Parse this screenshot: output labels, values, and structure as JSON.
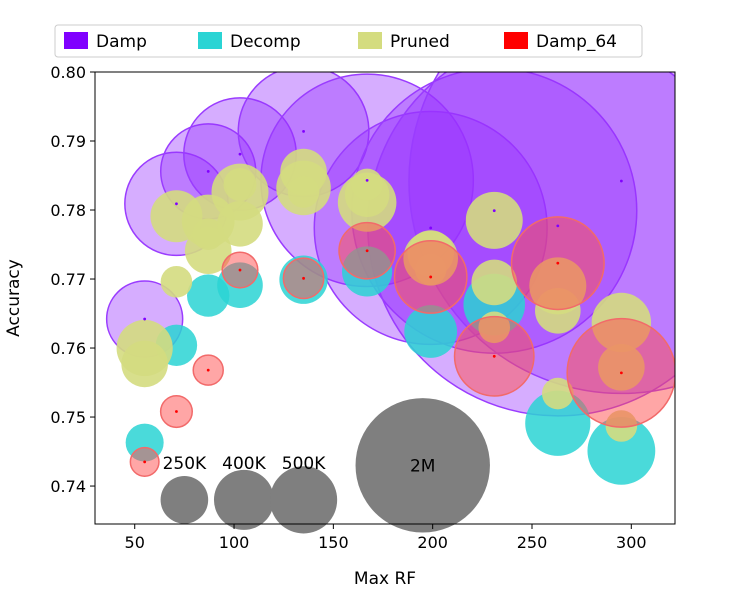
{
  "chart_data": {
    "type": "scatter",
    "title": "",
    "xlabel": "Max RF",
    "ylabel": "Accuracy",
    "xlim": [
      30,
      322
    ],
    "ylim": [
      0.7345,
      0.8
    ],
    "xticks": [
      50,
      100,
      150,
      200,
      250,
      300
    ],
    "xtick_labels": [
      "50",
      "100",
      "150",
      "200",
      "250",
      "300"
    ],
    "yticks": [
      0.74,
      0.75,
      0.76,
      0.77,
      0.78,
      0.79,
      0.8
    ],
    "ytick_labels": [
      "0.74",
      "0.75",
      "0.76",
      "0.77",
      "0.78",
      "0.79",
      "0.80"
    ],
    "legend": {
      "placement": "top",
      "entries": [
        {
          "label": "Damp",
          "color": "#8000ff"
        },
        {
          "label": "Decomp",
          "color": "#2ad4d4"
        },
        {
          "label": "Pruned",
          "color": "#d4dc7f"
        },
        {
          "label": "Damp_64",
          "color": "#ff0000"
        }
      ]
    },
    "size_legend": [
      {
        "label": "250K",
        "params": 250000,
        "x": 75,
        "y": 0.738
      },
      {
        "label": "400K",
        "params": 400000,
        "x": 105,
        "y": 0.738
      },
      {
        "label": "500K",
        "params": 500000,
        "x": 135,
        "y": 0.738
      },
      {
        "label": "2M",
        "params": 2000000,
        "x": 195,
        "y": 0.743
      }
    ],
    "series": [
      {
        "name": "Damp",
        "color": "#8000ff",
        "fill": "rgba(153,51,255,0.4)",
        "stroke": "#9a3cff",
        "points": [
          {
            "x": 55,
            "y": 0.7642,
            "params": 640000
          },
          {
            "x": 71,
            "y": 0.7809,
            "params": 1180000
          },
          {
            "x": 87,
            "y": 0.7856,
            "params": 1000000
          },
          {
            "x": 103,
            "y": 0.7881,
            "params": 1400000
          },
          {
            "x": 135,
            "y": 0.7914,
            "params": 1890000
          },
          {
            "x": 167,
            "y": 0.7843,
            "params": 5000000
          },
          {
            "x": 199,
            "y": 0.7774,
            "params": 6000000
          },
          {
            "x": 231,
            "y": 0.7799,
            "params": 9000000
          },
          {
            "x": 263,
            "y": 0.7777,
            "params": 16000000
          },
          {
            "x": 295,
            "y": 0.7842,
            "params": 20000000
          }
        ]
      },
      {
        "name": "Decomp",
        "color": "#2ad4d4",
        "fill": "rgba(42,212,212,0.85)",
        "stroke": "none",
        "points": [
          {
            "x": 55,
            "y": 0.7463,
            "params": 160000
          },
          {
            "x": 71,
            "y": 0.7604,
            "params": 190000
          },
          {
            "x": 87,
            "y": 0.7676,
            "params": 200000
          },
          {
            "x": 103,
            "y": 0.7691,
            "params": 230000
          },
          {
            "x": 135,
            "y": 0.7699,
            "params": 260000
          },
          {
            "x": 167,
            "y": 0.7711,
            "params": 280000
          },
          {
            "x": 199,
            "y": 0.7624,
            "params": 310000
          },
          {
            "x": 231,
            "y": 0.7663,
            "params": 420000
          },
          {
            "x": 263,
            "y": 0.7491,
            "params": 470000
          },
          {
            "x": 295,
            "y": 0.7451,
            "params": 510000
          }
        ]
      },
      {
        "name": "Pruned",
        "color": "#d4dc7f",
        "fill": "rgba(212,220,127,0.9)",
        "stroke": "none",
        "points": [
          {
            "x": 55,
            "y": 0.76,
            "params": 350000
          },
          {
            "x": 55,
            "y": 0.7577,
            "params": 240000
          },
          {
            "x": 71,
            "y": 0.7791,
            "params": 300000
          },
          {
            "x": 71,
            "y": 0.7696,
            "params": 110000
          },
          {
            "x": 87,
            "y": 0.7784,
            "params": 310000
          },
          {
            "x": 87,
            "y": 0.7741,
            "params": 240000
          },
          {
            "x": 87,
            "y": 0.7765,
            "params": 110000
          },
          {
            "x": 103,
            "y": 0.7826,
            "params": 360000
          },
          {
            "x": 103,
            "y": 0.778,
            "params": 230000
          },
          {
            "x": 103,
            "y": 0.7837,
            "params": 120000
          },
          {
            "x": 135,
            "y": 0.7832,
            "params": 330000
          },
          {
            "x": 135,
            "y": 0.7855,
            "params": 240000
          },
          {
            "x": 135,
            "y": 0.7826,
            "params": 110000
          },
          {
            "x": 167,
            "y": 0.7811,
            "params": 380000
          },
          {
            "x": 167,
            "y": 0.7822,
            "params": 220000
          },
          {
            "x": 167,
            "y": 0.7837,
            "params": 110000
          },
          {
            "x": 199,
            "y": 0.773,
            "params": 330000
          },
          {
            "x": 199,
            "y": 0.7737,
            "params": 240000
          },
          {
            "x": 199,
            "y": 0.7714,
            "params": 110000
          },
          {
            "x": 231,
            "y": 0.7785,
            "params": 360000
          },
          {
            "x": 231,
            "y": 0.7695,
            "params": 230000
          },
          {
            "x": 231,
            "y": 0.763,
            "params": 110000
          },
          {
            "x": 263,
            "y": 0.769,
            "params": 360000
          },
          {
            "x": 263,
            "y": 0.7654,
            "params": 230000
          },
          {
            "x": 263,
            "y": 0.7534,
            "params": 110000
          },
          {
            "x": 295,
            "y": 0.7637,
            "params": 390000
          },
          {
            "x": 295,
            "y": 0.7572,
            "params": 240000
          },
          {
            "x": 295,
            "y": 0.7487,
            "params": 110000
          }
        ]
      },
      {
        "name": "Damp_64",
        "color": "#ff0000",
        "fill": "rgba(255,77,77,0.5)",
        "stroke": "#f26a6a",
        "points": [
          {
            "x": 55,
            "y": 0.7435,
            "params": 90000
          },
          {
            "x": 71,
            "y": 0.7508,
            "params": 110000
          },
          {
            "x": 87,
            "y": 0.7568,
            "params": 100000
          },
          {
            "x": 103,
            "y": 0.7713,
            "params": 140000
          },
          {
            "x": 135,
            "y": 0.7701,
            "params": 180000
          },
          {
            "x": 167,
            "y": 0.7741,
            "params": 350000
          },
          {
            "x": 199,
            "y": 0.7703,
            "params": 580000
          },
          {
            "x": 231,
            "y": 0.7588,
            "params": 700000
          },
          {
            "x": 263,
            "y": 0.7723,
            "params": 950000
          },
          {
            "x": 295,
            "y": 0.7564,
            "params": 1300000
          }
        ]
      }
    ]
  }
}
